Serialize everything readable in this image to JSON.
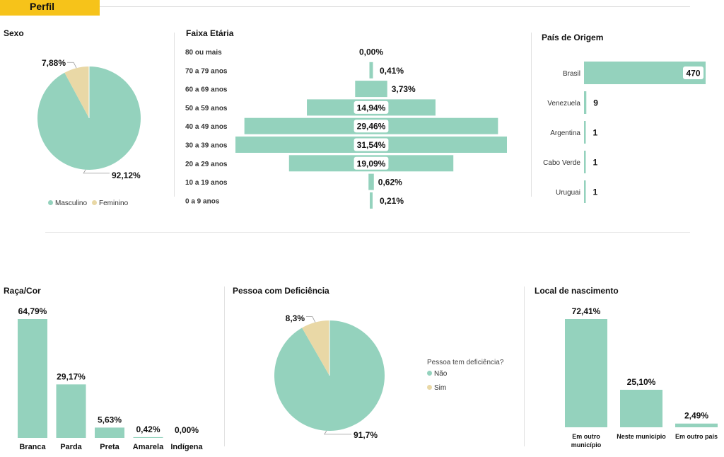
{
  "header": {
    "tab_label": "Perfil"
  },
  "colors": {
    "primary": "#94D2BD",
    "secondary": "#E9D8A6",
    "accent": "#F6C31A"
  },
  "titles": {
    "sexo": "Sexo",
    "faixa": "Faixa Etária",
    "pais": "País de Origem",
    "raca": "Raça/Cor",
    "deficiencia": "Pessoa com Deficiência",
    "local": "Local de nascimento"
  },
  "chart_data": [
    {
      "id": "sexo",
      "type": "pie",
      "title": "Sexo",
      "slices": [
        {
          "label": "Masculino",
          "value": 92.12,
          "display": "92,12%"
        },
        {
          "label": "Feminino",
          "value": 7.88,
          "display": "7,88%"
        }
      ],
      "legend_position": "bottom"
    },
    {
      "id": "faixa",
      "type": "bar",
      "orientation": "horizontal-centered",
      "title": "Faixa Etária",
      "categories": [
        "80 ou mais",
        "70 a 79 anos",
        "60 a 69 anos",
        "50 a 59 anos",
        "40 a 49 anos",
        "30 a 39 anos",
        "20 a 29 anos",
        "10 a 19 anos",
        "0 a 9 anos"
      ],
      "values": [
        0.0,
        0.41,
        3.73,
        14.94,
        29.46,
        31.54,
        19.09,
        0.62,
        0.21
      ],
      "labels": [
        "0,00%",
        "0,41%",
        "3,73%",
        "14,94%",
        "29,46%",
        "31,54%",
        "19,09%",
        "0,62%",
        "0,21%"
      ]
    },
    {
      "id": "pais",
      "type": "bar",
      "orientation": "horizontal",
      "title": "País de Origem",
      "categories": [
        "Brasil",
        "Venezuela",
        "Argentina",
        "Cabo Verde",
        "Uruguai"
      ],
      "values": [
        470,
        9,
        1,
        1,
        1
      ],
      "labels": [
        "470",
        "9",
        "1",
        "1",
        "1"
      ]
    },
    {
      "id": "raca",
      "type": "bar",
      "title": "Raça/Cor",
      "categories": [
        "Branca",
        "Parda",
        "Preta",
        "Amarela",
        "Indígena"
      ],
      "values": [
        64.79,
        29.17,
        5.63,
        0.42,
        0.0
      ],
      "labels": [
        "64,79%",
        "29,17%",
        "5,63%",
        "0,42%",
        "0,00%"
      ]
    },
    {
      "id": "deficiencia",
      "type": "pie",
      "title": "Pessoa com Deficiência",
      "slices": [
        {
          "label": "Não",
          "value": 91.7,
          "display": "91,7%"
        },
        {
          "label": "Sim",
          "value": 8.3,
          "display": "8,3%"
        }
      ],
      "legend_title": "Pessoa tem deficiência?",
      "legend_position": "right"
    },
    {
      "id": "local",
      "type": "bar",
      "title": "Local de nascimento",
      "categories": [
        "Em outro município",
        "Neste município",
        "Em outro país"
      ],
      "values": [
        72.41,
        25.1,
        2.49
      ],
      "labels": [
        "72,41%",
        "25,10%",
        "2,49%"
      ]
    }
  ]
}
